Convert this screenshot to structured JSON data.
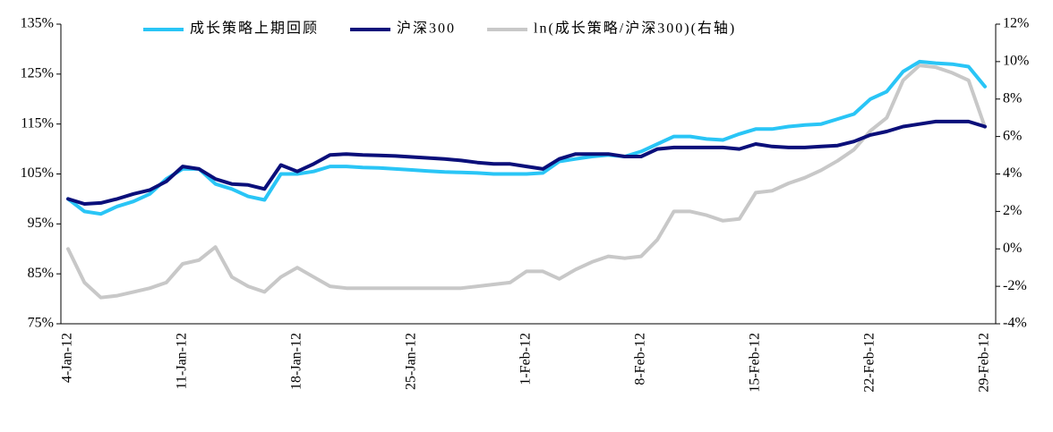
{
  "chart_data": {
    "type": "line",
    "categories": [
      "4-Jan-12",
      null,
      null,
      null,
      null,
      null,
      null,
      "11-Jan-12",
      null,
      null,
      null,
      null,
      null,
      null,
      "18-Jan-12",
      null,
      null,
      null,
      null,
      null,
      null,
      "25-Jan-12",
      null,
      null,
      null,
      null,
      null,
      null,
      "1-Feb-12",
      null,
      null,
      null,
      null,
      null,
      null,
      "8-Feb-12",
      null,
      null,
      null,
      null,
      null,
      null,
      "15-Feb-12",
      null,
      null,
      null,
      null,
      null,
      null,
      "22-Feb-12",
      null,
      null,
      null,
      null,
      null,
      null,
      "29-Feb-12"
    ],
    "series": [
      {
        "name": "成长策略上期回顾",
        "color": "#29c5f6",
        "values": [
          100,
          97.5,
          97,
          98.5,
          99.5,
          101,
          104,
          106,
          106,
          103,
          102,
          100.5,
          99.8,
          105,
          105,
          105.5,
          106.5,
          106.5,
          106.3,
          106.2,
          106,
          105.8,
          105.6,
          105.4,
          105.3,
          105.2,
          105,
          105,
          105,
          105.2,
          107.5,
          108,
          108.5,
          108.8,
          108.5,
          109.5,
          111,
          112.5,
          112.5,
          112,
          111.8,
          113,
          114,
          114,
          114.5,
          114.8,
          115,
          116,
          117,
          120,
          121.5,
          125.5,
          127.5,
          127.2,
          127,
          126.5,
          122.5
        ]
      },
      {
        "name": "沪深300",
        "color": "#0a0f7a",
        "values": [
          100,
          99,
          99.2,
          100,
          101,
          101.8,
          103.5,
          106.5,
          106,
          104,
          103,
          102.8,
          102,
          106.8,
          105.5,
          107,
          108.8,
          109,
          108.8,
          108.7,
          108.6,
          108.4,
          108.2,
          108,
          107.7,
          107.3,
          107,
          107,
          106.5,
          106,
          108,
          109,
          109,
          109,
          108.5,
          108.5,
          110,
          110.3,
          110.3,
          110.3,
          110.3,
          110,
          111,
          110.5,
          110.3,
          110.3,
          110.5,
          110.7,
          111.5,
          112.8,
          113.5,
          114.5,
          115,
          115.5,
          115.5,
          115.5,
          114.5
        ]
      },
      {
        "name": "ln(成长策略/沪深300)(右轴)",
        "color": "#c8c8c8",
        "axis": "y2",
        "values": [
          0,
          -1.8,
          -2.6,
          -2.5,
          -2.3,
          -2.1,
          -1.8,
          -0.8,
          -0.6,
          0.1,
          -1.5,
          -2,
          -2.3,
          -1.5,
          -1,
          -1.5,
          -2,
          -2.1,
          -2.1,
          -2.1,
          -2.1,
          -2.1,
          -2.1,
          -2.1,
          -2.1,
          -2,
          -1.9,
          -1.8,
          -1.2,
          -1.2,
          -1.6,
          -1.1,
          -0.7,
          -0.4,
          -0.5,
          -0.4,
          0.5,
          2,
          2,
          1.8,
          1.5,
          1.6,
          3,
          3.1,
          3.5,
          3.8,
          4.2,
          4.7,
          5.3,
          6.3,
          7,
          9,
          9.8,
          9.7,
          9.4,
          9,
          6.5
        ]
      }
    ],
    "ylim": [
      75,
      135
    ],
    "yticks": [
      {
        "value": 75,
        "label": "75%"
      },
      {
        "value": 85,
        "label": "85%"
      },
      {
        "value": 95,
        "label": "95%"
      },
      {
        "value": 105,
        "label": "105%"
      },
      {
        "value": 115,
        "label": "115%"
      },
      {
        "value": 125,
        "label": "125%"
      },
      {
        "value": 135,
        "label": "135%"
      }
    ],
    "y2lim": [
      -4,
      12
    ],
    "y2ticks": [
      {
        "value": -4,
        "label": "-4%"
      },
      {
        "value": -2,
        "label": "-2%"
      },
      {
        "value": 0,
        "label": "0%"
      },
      {
        "value": 2,
        "label": "2%"
      },
      {
        "value": 4,
        "label": "4%"
      },
      {
        "value": 6,
        "label": "6%"
      },
      {
        "value": 8,
        "label": "8%"
      },
      {
        "value": 10,
        "label": "10%"
      },
      {
        "value": 12,
        "label": "12%"
      }
    ],
    "grid": false
  }
}
